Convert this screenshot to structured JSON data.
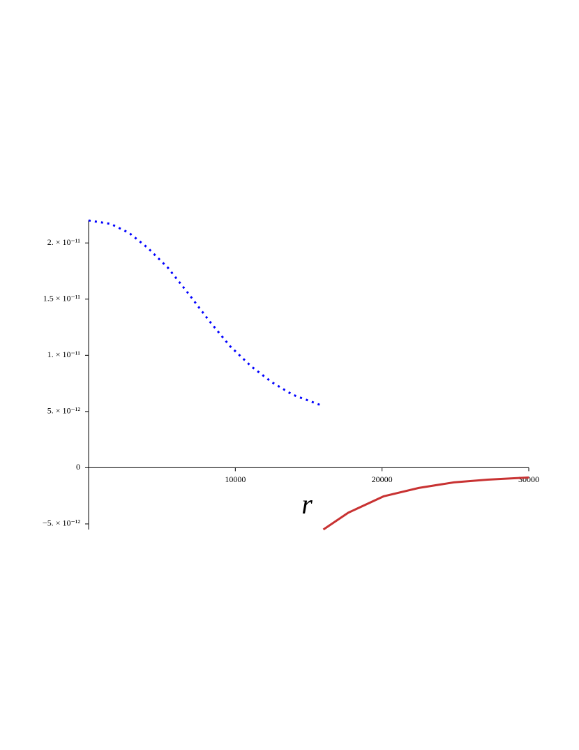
{
  "chart_data": {
    "type": "line",
    "x_label": "r",
    "xlim": [
      0,
      30000
    ],
    "xticks": [
      10000,
      20000,
      30000
    ],
    "ylim": [
      -5.5e-12,
      2.2e-11
    ],
    "yticks": [
      {
        "value": -5e-12,
        "label": "−5. × 10⁻¹²"
      },
      0,
      {
        "value": 5e-12,
        "label": "5. × 10⁻¹²"
      },
      {
        "value": 1e-11,
        "label": "1. × 10⁻¹¹"
      },
      {
        "value": 1.5e-11,
        "label": "1.5 × 10⁻¹¹"
      },
      {
        "value": 2e-11,
        "label": "2. × 10⁻¹¹"
      }
    ],
    "series": [
      {
        "color": "#0000ff",
        "dash": true,
        "x": [
          0,
          1500,
          2750,
          4000,
          5400,
          6800,
          8200,
          9650,
          11100,
          12500,
          13900,
          15750
        ],
        "values": [
          2.2e-11,
          2.17e-11,
          2.09e-11,
          1.96e-11,
          1.78e-11,
          1.55e-11,
          1.31e-11,
          1.08e-11,
          9e-12,
          7.6e-12,
          6.5e-12,
          5.6e-12
        ]
      },
      {
        "color": "#c83232",
        "dash": false,
        "x": [
          16000,
          17700,
          20100,
          22500,
          24900,
          27200,
          30000
        ],
        "values": [
          -5.5e-12,
          -4e-12,
          -2.55e-12,
          -1.8e-12,
          -1.3e-12,
          -1.06e-12,
          -8.7e-13
        ]
      }
    ]
  }
}
